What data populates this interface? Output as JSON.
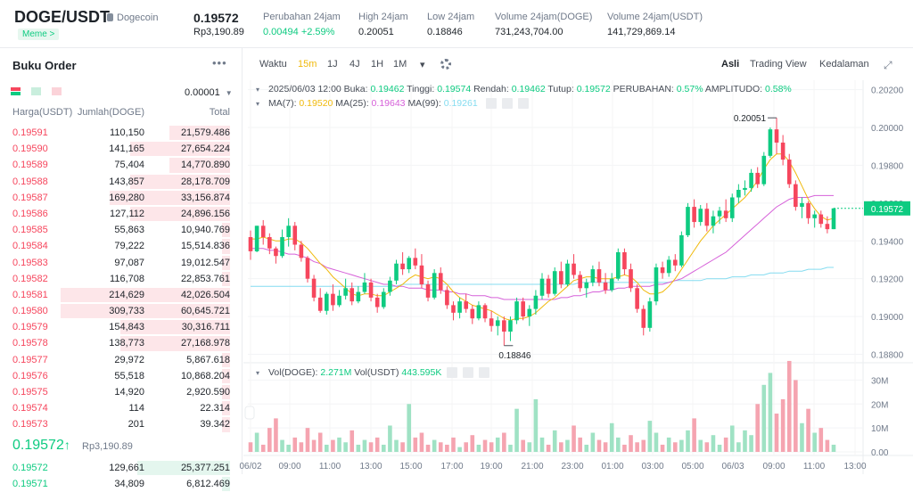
{
  "header": {
    "pair": "DOGE/USDT",
    "coin_name": "Dogecoin",
    "tag": "Meme >",
    "last_price": "0.19572",
    "last_price_idr": "Rp3,190.89",
    "stats": [
      {
        "label": "Perubahan 24jam",
        "value": "0.00494 +2.59%",
        "positive": true
      },
      {
        "label": "High 24jam",
        "value": "0.20051",
        "positive": false
      },
      {
        "label": "Low 24jam",
        "value": "0.18846",
        "positive": false
      },
      {
        "label": "Volume 24jam(DOGE)",
        "value": "731,243,704.00",
        "positive": false
      },
      {
        "label": "Volume 24jam(USDT)",
        "value": "141,729,869.14",
        "positive": false
      }
    ]
  },
  "orderbook": {
    "title": "Buku Order",
    "more": "•••",
    "precision": "0.00001",
    "col_price": "Harga(USDT)",
    "col_amount": "Jumlah(DOGE)",
    "col_total": "Total",
    "asks": [
      {
        "price": "0.19591",
        "amount": "110,150",
        "total": "21,579.486",
        "depth": 0.36
      },
      {
        "price": "0.19590",
        "amount": "141,165",
        "total": "27,654.224",
        "depth": 0.59
      },
      {
        "price": "0.19589",
        "amount": "75,404",
        "total": "14,770.890",
        "depth": 0.36
      },
      {
        "price": "0.19588",
        "amount": "143,857",
        "total": "28,178.709",
        "depth": 0.59
      },
      {
        "price": "0.19587",
        "amount": "169,280",
        "total": "33,156.874",
        "depth": 0.71
      },
      {
        "price": "0.19586",
        "amount": "127,112",
        "total": "24,896.156",
        "depth": 0.59
      },
      {
        "price": "0.19585",
        "amount": "55,863",
        "total": "10,940.769",
        "depth": 0.05
      },
      {
        "price": "0.19584",
        "amount": "79,222",
        "total": "15,514.836",
        "depth": 0.05
      },
      {
        "price": "0.19583",
        "amount": "97,087",
        "total": "19,012.547",
        "depth": 0.05
      },
      {
        "price": "0.19582",
        "amount": "116,708",
        "total": "22,853.761",
        "depth": 0.05
      },
      {
        "price": "0.19581",
        "amount": "214,629",
        "total": "42,026.504",
        "depth": 1.0
      },
      {
        "price": "0.19580",
        "amount": "309,733",
        "total": "60,645.721",
        "depth": 1.0
      },
      {
        "price": "0.19579",
        "amount": "154,843",
        "total": "30,316.711",
        "depth": 0.65
      },
      {
        "price": "0.19578",
        "amount": "138,773",
        "total": "27,168.978",
        "depth": 0.65
      },
      {
        "price": "0.19577",
        "amount": "29,972",
        "total": "5,867.618",
        "depth": 0.05
      },
      {
        "price": "0.19576",
        "amount": "55,518",
        "total": "10,868.204",
        "depth": 0.05
      },
      {
        "price": "0.19575",
        "amount": "14,920",
        "total": "2,920.590",
        "depth": 0.05
      },
      {
        "price": "0.19574",
        "amount": "114",
        "total": "22.314",
        "depth": 0.05
      },
      {
        "price": "0.19573",
        "amount": "201",
        "total": "39.342",
        "depth": 0.05
      }
    ],
    "mid_price": "0.19572",
    "mid_arrow": "↑",
    "mid_idr": "Rp3,190.89",
    "bids": [
      {
        "price": "0.19572",
        "amount": "129,661",
        "total": "25,377.251",
        "depth": 0.55
      },
      {
        "price": "0.19571",
        "amount": "34,809",
        "total": "6,812.469",
        "depth": 0.05
      }
    ]
  },
  "toolbar": {
    "items": [
      "Waktu",
      "15m",
      "1J",
      "4J",
      "1H",
      "1M",
      "▾"
    ],
    "active": "15m",
    "views": [
      "Asli",
      "Trading View",
      "Kedalaman"
    ],
    "active_view": "Asli"
  },
  "legend": {
    "ohlc_date": "2025/06/03 12:00",
    "open_label": "Buka:",
    "open": "0.19462",
    "high_label": "Tinggi:",
    "high": "0.19574",
    "low_label": "Rendah:",
    "low": "0.19462",
    "close_label": "Tutup:",
    "close": "0.19572",
    "change_label": "PERUBAHAN:",
    "change": "0.57%",
    "amp_label": "AMPLITUDO:",
    "amp": "0.58%",
    "ma7_label": "MA(7):",
    "ma7": "0.19520",
    "ma25_label": "MA(25):",
    "ma25": "0.19643",
    "ma99_label": "MA(99):",
    "ma99": "0.19261",
    "vol_doge_label": "Vol(DOGE):",
    "vol_doge": "2.271M",
    "vol_usdt_label": "Vol(USDT)",
    "vol_usdt": "443.595K"
  },
  "colors": {
    "up": "#0ecb81",
    "down": "#f6465d",
    "ma7": "#f0b90b",
    "ma25": "#d660d9",
    "ma99": "#84dcf0",
    "accent": "#f0b90b"
  },
  "chart_data": {
    "type": "candlestick",
    "price_ticks": [
      "0.20200",
      "0.20000",
      "0.19800",
      "0.19600",
      "0.19400",
      "0.19200",
      "0.19000",
      "0.18800"
    ],
    "price_range": [
      0.1876,
      0.2025
    ],
    "current_price_tag": "0.19572",
    "high_marker": "0.20051",
    "low_marker": "0.18846",
    "volume_ticks": [
      "30M",
      "20M",
      "10M",
      "0.00"
    ],
    "volume_max_m": 35,
    "time_ticks": [
      "06/02",
      "09:00",
      "11:00",
      "13:00",
      "15:00",
      "17:00",
      "19:00",
      "21:00",
      "23:00",
      "01:00",
      "03:00",
      "05:00",
      "06/03",
      "09:00",
      "11:00",
      "13:00"
    ],
    "candles": [
      [
        0.1942,
        0.19455,
        0.193,
        0.19345
      ],
      [
        0.19345,
        0.1948,
        0.1934,
        0.1948
      ],
      [
        0.1948,
        0.1951,
        0.1938,
        0.1942
      ],
      [
        0.1942,
        0.1944,
        0.1933,
        0.1936
      ],
      [
        0.1936,
        0.1937,
        0.1928,
        0.1932
      ],
      [
        0.1932,
        0.1946,
        0.1931,
        0.1942
      ],
      [
        0.1942,
        0.1952,
        0.1937,
        0.1948
      ],
      [
        0.1948,
        0.195,
        0.1935,
        0.1938
      ],
      [
        0.1938,
        0.194,
        0.1929,
        0.1931
      ],
      [
        0.1931,
        0.1932,
        0.1918,
        0.192
      ],
      [
        0.192,
        0.1922,
        0.1908,
        0.191
      ],
      [
        0.191,
        0.1915,
        0.1902,
        0.1903
      ],
      [
        0.1903,
        0.1913,
        0.1901,
        0.1912
      ],
      [
        0.1912,
        0.1917,
        0.1903,
        0.1906
      ],
      [
        0.1906,
        0.1914,
        0.1905,
        0.1911
      ],
      [
        0.1911,
        0.192,
        0.1909,
        0.1915
      ],
      [
        0.1915,
        0.1918,
        0.1906,
        0.1908
      ],
      [
        0.1908,
        0.1916,
        0.1907,
        0.1913
      ],
      [
        0.1913,
        0.1923,
        0.1912,
        0.1918
      ],
      [
        0.1918,
        0.192,
        0.1908,
        0.191
      ],
      [
        0.191,
        0.1912,
        0.1902,
        0.1905
      ],
      [
        0.1905,
        0.1915,
        0.1904,
        0.1913
      ],
      [
        0.1913,
        0.1921,
        0.1911,
        0.1919
      ],
      [
        0.1919,
        0.193,
        0.1917,
        0.1928
      ],
      [
        0.1928,
        0.1934,
        0.1922,
        0.1925
      ],
      [
        0.1925,
        0.1932,
        0.1923,
        0.1931
      ],
      [
        0.1931,
        0.1936,
        0.1925,
        0.1927
      ],
      [
        0.1927,
        0.1933,
        0.1915,
        0.1917
      ],
      [
        0.1917,
        0.1919,
        0.1908,
        0.191
      ],
      [
        0.191,
        0.1925,
        0.1909,
        0.1923
      ],
      [
        0.1923,
        0.1926,
        0.1912,
        0.1914
      ],
      [
        0.1914,
        0.1916,
        0.1904,
        0.1906
      ],
      [
        0.1906,
        0.1908,
        0.1898,
        0.1902
      ],
      [
        0.1902,
        0.191,
        0.1899,
        0.1908
      ],
      [
        0.1908,
        0.1912,
        0.1902,
        0.1904
      ],
      [
        0.1904,
        0.1906,
        0.1896,
        0.1899
      ],
      [
        0.1899,
        0.1908,
        0.1898,
        0.1906
      ],
      [
        0.1906,
        0.1907,
        0.1897,
        0.1899
      ],
      [
        0.1899,
        0.1903,
        0.1892,
        0.1895
      ],
      [
        0.1895,
        0.19,
        0.189,
        0.1898
      ],
      [
        0.1898,
        0.19,
        0.18846,
        0.1892
      ],
      [
        0.1892,
        0.19,
        0.1887,
        0.1898
      ],
      [
        0.1898,
        0.191,
        0.1896,
        0.1908
      ],
      [
        0.1908,
        0.191,
        0.1898,
        0.19
      ],
      [
        0.19,
        0.1906,
        0.1895,
        0.1904
      ],
      [
        0.1904,
        0.1914,
        0.1901,
        0.1911
      ],
      [
        0.1911,
        0.1923,
        0.1909,
        0.192
      ],
      [
        0.192,
        0.1922,
        0.191,
        0.1912
      ],
      [
        0.1912,
        0.1926,
        0.1911,
        0.1924
      ],
      [
        0.1924,
        0.1929,
        0.1915,
        0.1917
      ],
      [
        0.1917,
        0.193,
        0.1916,
        0.1928
      ],
      [
        0.1928,
        0.1933,
        0.192,
        0.1922
      ],
      [
        0.1922,
        0.1924,
        0.1913,
        0.1915
      ],
      [
        0.1915,
        0.192,
        0.191,
        0.1918
      ],
      [
        0.1918,
        0.1927,
        0.1916,
        0.1925
      ],
      [
        0.1925,
        0.1929,
        0.1916,
        0.1918
      ],
      [
        0.1918,
        0.1923,
        0.1912,
        0.1914
      ],
      [
        0.1914,
        0.1923,
        0.1913,
        0.192
      ],
      [
        0.192,
        0.1936,
        0.1919,
        0.1934
      ],
      [
        0.1934,
        0.1936,
        0.1922,
        0.1925
      ],
      [
        0.1925,
        0.1928,
        0.1913,
        0.1915
      ],
      [
        0.1915,
        0.1917,
        0.1902,
        0.1904
      ],
      [
        0.1904,
        0.1906,
        0.189,
        0.1894
      ],
      [
        0.1894,
        0.191,
        0.1892,
        0.1908
      ],
      [
        0.1908,
        0.1928,
        0.1906,
        0.1926
      ],
      [
        0.1926,
        0.1929,
        0.192,
        0.1923
      ],
      [
        0.1923,
        0.1932,
        0.1921,
        0.193
      ],
      [
        0.193,
        0.1933,
        0.1924,
        0.1927
      ],
      [
        0.1927,
        0.1945,
        0.1926,
        0.1943
      ],
      [
        0.1943,
        0.196,
        0.1942,
        0.1958
      ],
      [
        0.1958,
        0.1962,
        0.1947,
        0.195
      ],
      [
        0.195,
        0.1959,
        0.1948,
        0.1957
      ],
      [
        0.1957,
        0.196,
        0.1945,
        0.1948
      ],
      [
        0.1948,
        0.1956,
        0.1944,
        0.1953
      ],
      [
        0.1953,
        0.1958,
        0.1949,
        0.1956
      ],
      [
        0.1956,
        0.1962,
        0.195,
        0.1952
      ],
      [
        0.1952,
        0.1965,
        0.195,
        0.1963
      ],
      [
        0.1963,
        0.197,
        0.196,
        0.1967
      ],
      [
        0.1967,
        0.1972,
        0.1964,
        0.1968
      ],
      [
        0.1968,
        0.1978,
        0.1966,
        0.1976
      ],
      [
        0.1976,
        0.1979,
        0.1968,
        0.197
      ],
      [
        0.197,
        0.1987,
        0.1969,
        0.1985
      ],
      [
        0.1985,
        0.2,
        0.1984,
        0.1999
      ],
      [
        0.1999,
        0.20051,
        0.1986,
        0.1992
      ],
      [
        0.1992,
        0.1996,
        0.198,
        0.1983
      ],
      [
        0.1983,
        0.1986,
        0.1968,
        0.197
      ],
      [
        0.197,
        0.1972,
        0.1956,
        0.1958
      ],
      [
        0.1958,
        0.1963,
        0.1952,
        0.196
      ],
      [
        0.196,
        0.1961,
        0.1949,
        0.1952
      ],
      [
        0.1952,
        0.1956,
        0.1947,
        0.1954
      ],
      [
        0.1954,
        0.1956,
        0.1947,
        0.1949
      ],
      [
        0.1949,
        0.1953,
        0.1944,
        0.19462
      ],
      [
        0.19462,
        0.19574,
        0.19462,
        0.19572
      ]
    ],
    "ma7": [
      0.1941,
      0.1941,
      0.1942,
      0.1941,
      0.194,
      0.194,
      0.1941,
      0.1941,
      0.1939,
      0.1936,
      0.1932,
      0.1928,
      0.1925,
      0.1921,
      0.1918,
      0.1915,
      0.1912,
      0.1911,
      0.1912,
      0.1912,
      0.1911,
      0.1911,
      0.1913,
      0.1915,
      0.1917,
      0.192,
      0.1922,
      0.1921,
      0.192,
      0.1921,
      0.192,
      0.1917,
      0.1913,
      0.191,
      0.1908,
      0.1906,
      0.1905,
      0.1904,
      0.1903,
      0.1901,
      0.1899,
      0.1898,
      0.1899,
      0.1899,
      0.19,
      0.1902,
      0.1905,
      0.1908,
      0.191,
      0.1913,
      0.1916,
      0.1919,
      0.192,
      0.1921,
      0.1921,
      0.192,
      0.192,
      0.192,
      0.1921,
      0.1922,
      0.1921,
      0.1918,
      0.1914,
      0.1912,
      0.1912,
      0.1913,
      0.1916,
      0.192,
      0.1925,
      0.193,
      0.1935,
      0.194,
      0.1944,
      0.1948,
      0.1951,
      0.1954,
      0.1957,
      0.196,
      0.1963,
      0.1967,
      0.1972,
      0.1978,
      0.1983,
      0.1986,
      0.1986,
      0.1982,
      0.1976,
      0.1969,
      0.1962,
      0.1957,
      0.1953,
      0.1951,
      0.1952
    ],
    "ma25": [
      0.1936,
      0.1936,
      0.1936,
      0.1935,
      0.1935,
      0.1934,
      0.1933,
      0.1933,
      0.1932,
      0.1931,
      0.1929,
      0.1928,
      0.1926,
      0.1925,
      0.1924,
      0.1923,
      0.1922,
      0.1921,
      0.192,
      0.1919,
      0.1918,
      0.1917,
      0.1917,
      0.1916,
      0.1916,
      0.1915,
      0.1915,
      0.1915,
      0.1914,
      0.1914,
      0.1914,
      0.1913,
      0.1913,
      0.1912,
      0.1912,
      0.1911,
      0.1911,
      0.1911,
      0.191,
      0.191,
      0.1909,
      0.1909,
      0.1909,
      0.1909,
      0.1909,
      0.1909,
      0.1909,
      0.1909,
      0.1909,
      0.191,
      0.191,
      0.1911,
      0.1911,
      0.1912,
      0.1913,
      0.1913,
      0.1914,
      0.1914,
      0.1915,
      0.1915,
      0.1916,
      0.1916,
      0.1916,
      0.1916,
      0.1917,
      0.1917,
      0.1918,
      0.1919,
      0.192,
      0.1922,
      0.1924,
      0.1926,
      0.1928,
      0.193,
      0.1932,
      0.1934,
      0.1937,
      0.194,
      0.1943,
      0.1946,
      0.1949,
      0.1952,
      0.1955,
      0.1958,
      0.196,
      0.1962,
      0.1963,
      0.1963,
      0.1963,
      0.1964,
      0.1964,
      0.1964,
      0.1964
    ],
    "ma99": [
      0.1916,
      0.1916,
      0.1916,
      0.1916,
      0.1916,
      0.1916,
      0.1916,
      0.1916,
      0.1916,
      0.1916,
      0.1916,
      0.1916,
      0.1916,
      0.1916,
      0.1916,
      0.1916,
      0.1916,
      0.1916,
      0.1916,
      0.1916,
      0.1916,
      0.1916,
      0.1916,
      0.1916,
      0.1917,
      0.1917,
      0.1917,
      0.1917,
      0.1917,
      0.1917,
      0.1917,
      0.1917,
      0.1917,
      0.1917,
      0.1917,
      0.1917,
      0.1917,
      0.1917,
      0.1917,
      0.1917,
      0.1917,
      0.1917,
      0.1917,
      0.1917,
      0.1917,
      0.1917,
      0.1917,
      0.1917,
      0.1917,
      0.1917,
      0.1917,
      0.1917,
      0.1918,
      0.1918,
      0.1918,
      0.1918,
      0.1918,
      0.1918,
      0.1918,
      0.1918,
      0.1918,
      0.1918,
      0.1918,
      0.1918,
      0.1918,
      0.1918,
      0.1918,
      0.1919,
      0.1919,
      0.1919,
      0.1919,
      0.1919,
      0.192,
      0.192,
      0.192,
      0.192,
      0.1921,
      0.1921,
      0.1921,
      0.1922,
      0.1922,
      0.1922,
      0.1923,
      0.1923,
      0.1923,
      0.1924,
      0.1924,
      0.1924,
      0.1925,
      0.1925,
      0.1925,
      0.1926,
      0.1926
    ],
    "volumes_m": [
      4,
      8,
      3,
      10,
      14,
      5,
      3,
      6,
      4,
      10,
      5,
      8,
      3,
      5,
      6,
      4,
      9,
      3,
      5,
      4,
      6,
      3,
      11,
      5,
      4,
      20,
      6,
      8,
      3,
      5,
      4,
      3,
      6,
      2,
      4,
      7,
      3,
      5,
      4,
      6,
      8,
      3,
      18,
      5,
      4,
      22,
      6,
      3,
      9,
      4,
      5,
      11,
      6,
      3,
      8,
      5,
      4,
      12,
      6,
      3,
      7,
      4,
      5,
      13,
      8,
      3,
      6,
      4,
      5,
      9,
      14,
      5,
      4,
      7,
      3,
      6,
      11,
      4,
      9,
      7,
      20,
      28,
      33,
      16,
      22,
      38,
      30,
      12,
      18,
      8,
      10,
      5,
      3
    ]
  }
}
